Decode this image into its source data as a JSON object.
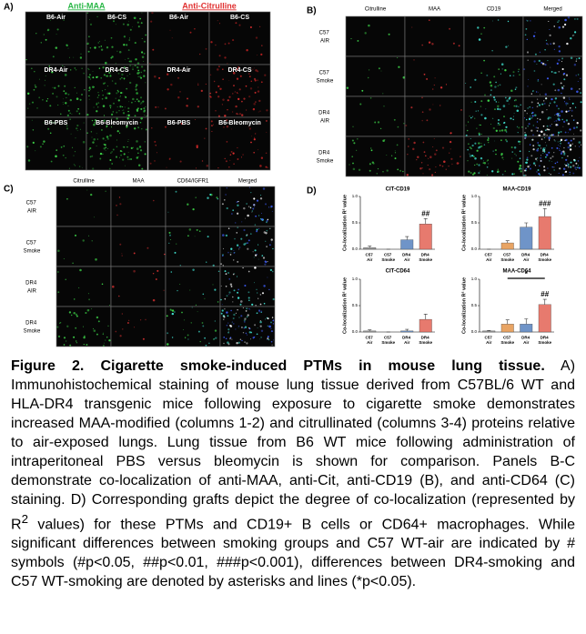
{
  "panel_a": {
    "label": "A)",
    "headers": [
      "Anti-MAA",
      "Anti-Citrulline"
    ],
    "image_labels": [
      [
        "B6-Air",
        "B6-CS",
        "B6-Air",
        "B6-CS"
      ],
      [
        "DR4-Air",
        "DR4-CS",
        "DR4-Air",
        "DR4-CS"
      ],
      [
        "B6-PBS",
        "B6-Bleomycin",
        "B6-PBS",
        "B6-Bleomycin"
      ]
    ]
  },
  "panel_b": {
    "label": "B)",
    "columns": [
      "Citrulline",
      "MAA",
      "CD19",
      "Merged"
    ],
    "rows": [
      "C57 AIR",
      "C57 Smoke",
      "DR4 AIR",
      "DR4 Smoke"
    ]
  },
  "panel_c": {
    "label": "C)",
    "columns": [
      "Citrulline",
      "MAA",
      "CD64/IGFR1",
      "Merged"
    ],
    "rows": [
      "C57 AIR",
      "C57 Smoke",
      "DR4 AIR",
      "DR4 Smoke"
    ]
  },
  "panel_d": {
    "label": "D)"
  },
  "chart_data": [
    {
      "type": "bar",
      "title": "CIT-CD19",
      "y_label": "Co-localization R² value",
      "categories": [
        "C57 Air",
        "C57 Smoke",
        "DR4 Air",
        "DR4 Smoke"
      ],
      "colors": [
        "#9a9a9a",
        "#e8a464",
        "#6f94c8",
        "#e77a6e"
      ],
      "values": [
        0.03,
        0,
        0.18,
        0.48
      ],
      "errors": [
        0.03,
        0,
        0.06,
        0.1
      ],
      "significance": [
        null,
        null,
        null,
        "##"
      ],
      "ylim": [
        0,
        1
      ],
      "yticks": [
        {
          "value": 0,
          "label": "0.0"
        },
        0.5,
        {
          "value": 1,
          "label": "1.0"
        }
      ]
    },
    {
      "type": "bar",
      "title": "MAA-CD19",
      "y_label": "Co-localization R² value",
      "categories": [
        "C57 Air",
        "C57 Smoke",
        "DR4 Air",
        "DR4 Smoke"
      ],
      "colors": [
        "#9a9a9a",
        "#e8a464",
        "#6f94c8",
        "#e77a6e"
      ],
      "values": [
        0,
        0.12,
        0.42,
        0.62
      ],
      "errors": [
        0,
        0.04,
        0.08,
        0.15
      ],
      "significance": [
        null,
        null,
        null,
        "###"
      ],
      "ylim": [
        0,
        1
      ],
      "yticks": [
        {
          "value": 0,
          "label": "0.0"
        },
        0.5,
        {
          "value": 1,
          "label": "1.0"
        }
      ]
    },
    {
      "type": "bar",
      "title": "CIT-CD64",
      "y_label": "Co-localization R² value",
      "categories": [
        "C57 Air",
        "C57 Smoke",
        "DR4 Air",
        "DR4 Smoke"
      ],
      "colors": [
        "#9a9a9a",
        "#e8a464",
        "#6f94c8",
        "#e77a6e"
      ],
      "values": [
        0.02,
        0,
        0.02,
        0.24
      ],
      "errors": [
        0.02,
        0,
        0.03,
        0.1
      ],
      "ylim": [
        0,
        1
      ],
      "yticks": [
        {
          "value": 0,
          "label": "0.0"
        },
        0.5,
        {
          "value": 1,
          "label": "1.0"
        }
      ]
    },
    {
      "type": "bar",
      "title": "MAA-CD64",
      "y_label": "Co-localization R² value",
      "categories": [
        "C57 Air",
        "C57 Smoke",
        "DR4 Air",
        "DR4 Smoke"
      ],
      "colors": [
        "#9a9a9a",
        "#e8a464",
        "#6f94c8",
        "#e77a6e"
      ],
      "values": [
        0.02,
        0.15,
        0.15,
        0.52
      ],
      "errors": [
        0.01,
        0.08,
        0.1,
        0.1
      ],
      "significance": [
        null,
        null,
        null,
        "##"
      ],
      "bracket_label": "*",
      "ylim": [
        0,
        1
      ],
      "yticks": [
        {
          "value": 0,
          "label": "0.0"
        },
        0.5,
        {
          "value": 1,
          "label": "1.0"
        }
      ]
    }
  ],
  "caption": {
    "title": "Figure 2.  Cigarette smoke-induced PTMs in mouse lung tissue.",
    "text_1": "A) Immunohistochemical staining of mouse lung tissue derived from C57BL/6 WT and HLA-DR4 transgenic mice following exposure to cigarette smoke demonstrates increased MAA-modified (columns 1-2) and citrullinated (columns 3-4) proteins relative to air-exposed lungs.  Lung tissue from B6 WT mice following administration of intraperitoneal PBS versus bleomycin is shown for comparison.  Panels B-C demonstrate co-localization of anti-MAA, anti-Cit, anti-CD19 (B), and anti-CD64 (C) staining.  D) Corresponding grafts depict the degree of co-localization (represented by R",
    "superscript": "2",
    "text_2": " values) for these PTMs and CD19+ B cells or CD64+ macrophages.  While significant differences between smoking groups and C57 WT-air are indicated by # symbols (#p<0.05, ##p<0.01, ###p<0.001), differences between DR4-smoking and C57 WT-smoking are denoted by asterisks and lines (*p<0.05)."
  }
}
